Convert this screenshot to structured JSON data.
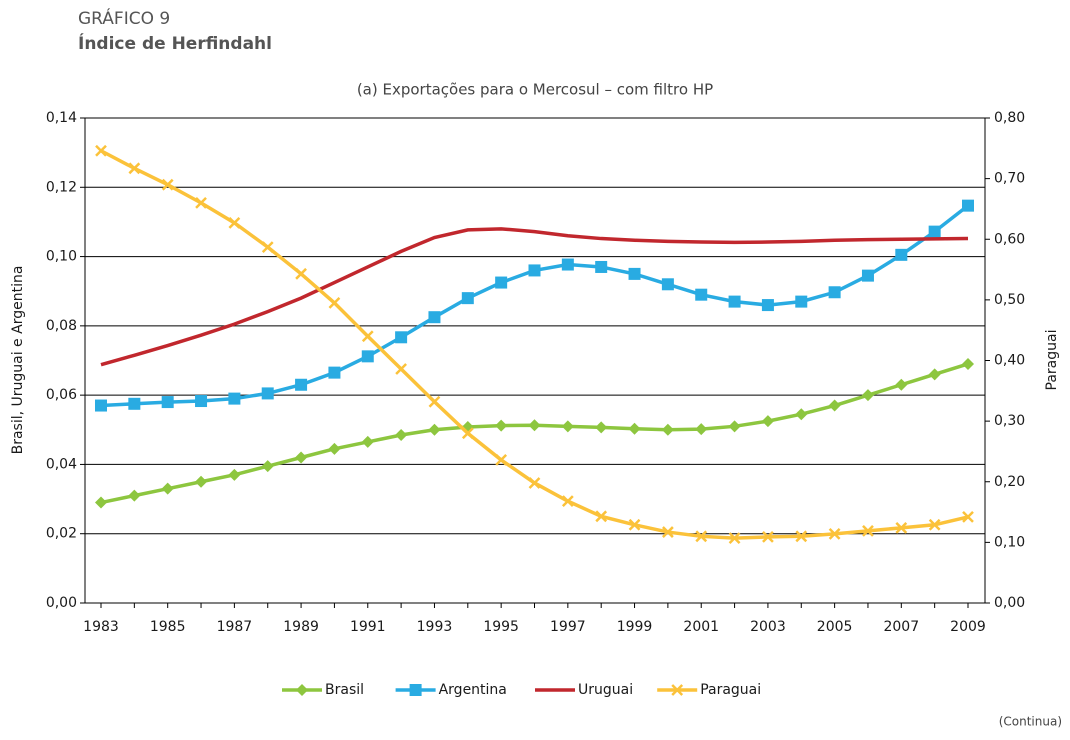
{
  "chart_data": {
    "type": "line",
    "label": "GRÁFICO 9",
    "title": "Índice de Herfindahl",
    "subtitle": "(a) Exportações para o Mercosul – com filtro HP",
    "y_label": "Brasil, Uruguai e Argentina",
    "y2_label": "Paraguai",
    "note": "(Continua)",
    "categories": [
      "1983",
      null,
      "1985",
      null,
      "1987",
      null,
      "1989",
      null,
      "1991",
      null,
      "1993",
      null,
      "1995",
      null,
      "1997",
      null,
      "1999",
      null,
      "2001",
      null,
      "2003",
      null,
      "2005",
      null,
      "2007",
      null,
      "2009"
    ],
    "ylim": [
      0,
      0.14
    ],
    "yticks": [
      {
        "value": 0,
        "label": "0,00"
      },
      {
        "value": 0.02,
        "label": "0,02"
      },
      {
        "value": 0.04,
        "label": "0,04"
      },
      {
        "value": 0.06,
        "label": "0,06"
      },
      {
        "value": 0.08,
        "label": "0,08"
      },
      {
        "value": 0.1,
        "label": "0,10"
      },
      {
        "value": 0.12,
        "label": "0,12"
      },
      {
        "value": 0.14,
        "label": "0,14"
      }
    ],
    "y2lim": [
      0,
      0.8
    ],
    "y2ticks": [
      {
        "value": 0,
        "label": "0,00"
      },
      {
        "value": 0.1,
        "label": "0,10"
      },
      {
        "value": 0.2,
        "label": "0,20"
      },
      {
        "value": 0.3,
        "label": "0,30"
      },
      {
        "value": 0.4,
        "label": "0,40"
      },
      {
        "value": 0.5,
        "label": "0,50"
      },
      {
        "value": 0.6,
        "label": "0,60"
      },
      {
        "value": 0.7,
        "label": "0,70"
      },
      {
        "value": 0.8,
        "label": "0,80"
      }
    ],
    "grid": true,
    "series": [
      {
        "name": "Brasil",
        "color": "#8dc63f",
        "marker": "diamond",
        "values": [
          0.029,
          0.031,
          0.033,
          0.035,
          0.037,
          0.0395,
          0.042,
          0.0445,
          0.0465,
          0.0485,
          0.05,
          0.0508,
          0.0512,
          0.0513,
          0.051,
          0.0507,
          0.0503,
          0.05,
          0.0502,
          0.051,
          0.0525,
          0.0545,
          0.057,
          0.06,
          0.063,
          0.066,
          0.069
        ]
      },
      {
        "name": "Argentina",
        "color": "#29abe2",
        "marker": "square",
        "values": [
          0.057,
          0.0575,
          0.058,
          0.0583,
          0.059,
          0.0605,
          0.063,
          0.0665,
          0.0712,
          0.0767,
          0.0825,
          0.088,
          0.0925,
          0.096,
          0.0977,
          0.097,
          0.095,
          0.092,
          0.089,
          0.087,
          0.086,
          0.087,
          0.0897,
          0.0945,
          0.1005,
          0.1072,
          0.1147
        ]
      },
      {
        "name": "Uruguai",
        "color": "#c1272d",
        "marker": "none",
        "values": [
          0.0688,
          0.0715,
          0.0743,
          0.0773,
          0.0805,
          0.0841,
          0.088,
          0.0925,
          0.097,
          0.1015,
          0.1055,
          0.1077,
          0.108,
          0.1072,
          0.106,
          0.1052,
          0.1047,
          0.1044,
          0.1042,
          0.1041,
          0.1042,
          0.1044,
          0.1047,
          0.1049,
          0.105,
          0.1051,
          0.1052
        ]
      },
      {
        "name": "Paraguai",
        "color": "#fbc23a",
        "marker": "x",
        "axis": "y2",
        "values": [
          0.746,
          0.717,
          0.69,
          0.66,
          0.627,
          0.587,
          0.543,
          0.495,
          0.44,
          0.386,
          0.332,
          0.28,
          0.236,
          0.198,
          0.168,
          0.143,
          0.129,
          0.117,
          0.11,
          0.107,
          0.109,
          0.11,
          0.114,
          0.119,
          0.124,
          0.129,
          0.142
        ]
      }
    ]
  }
}
